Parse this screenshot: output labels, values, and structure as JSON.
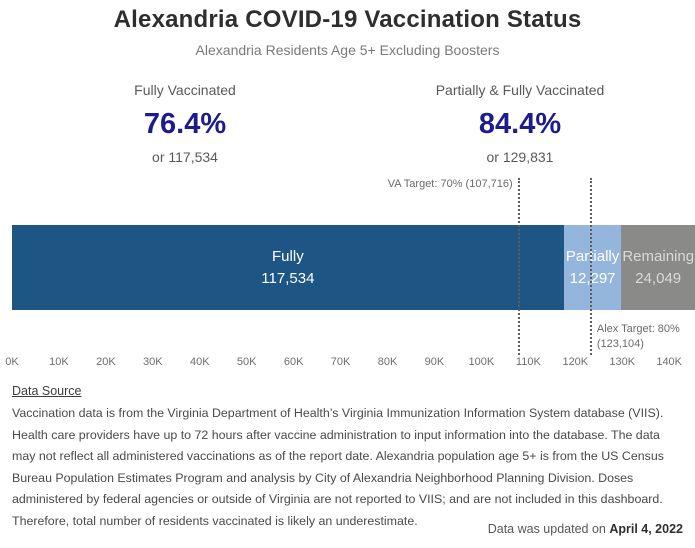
{
  "header": {
    "title": "Alexandria COVID-19 Vaccination Status",
    "subtitle": "Alexandria Residents Age 5+ Excluding Boosters"
  },
  "stats": [
    {
      "label": "Fully Vaccinated",
      "percent": "76.4%",
      "count": "or 117,534"
    },
    {
      "label": "Partially & Fully Vaccinated",
      "percent": "84.4%",
      "count": "or 129,831"
    }
  ],
  "chart_data": {
    "type": "bar",
    "orientation": "horizontal_stacked",
    "segments": [
      {
        "name": "Fully",
        "value": 117534,
        "value_label": "117,534",
        "color": "#1d5584",
        "text_color": "#ffffff"
      },
      {
        "name": "Partially",
        "value": 12297,
        "value_label": "12,297",
        "color": "#94b5dc",
        "text_color": "#ffffff"
      },
      {
        "name": "Remaining",
        "value": 24049,
        "value_label": "24,049",
        "color": "#8a8a89",
        "text_color": "#d9d9d9"
      }
    ],
    "x_ticks": [
      "0K",
      "10K",
      "20K",
      "30K",
      "40K",
      "50K",
      "60K",
      "70K",
      "80K",
      "90K",
      "100K",
      "110K",
      "120K",
      "130K",
      "140K"
    ],
    "x_tick_step": 10000,
    "xlim": [
      0,
      145500
    ],
    "grid": false,
    "annotations": [
      {
        "label": "VA Target: 70% (107,716)",
        "value": 107716,
        "placement": "left-of-line-top"
      },
      {
        "label": "Alex Target: 80%",
        "sublabel": "(123,104)",
        "value": 123104,
        "placement": "right-of-line-bottom"
      }
    ]
  },
  "footer": {
    "heading": "Data Source",
    "body": "Vaccination data is from the Virginia Department of Health’s Virginia Immunization Information System database (VIIS). Health care providers have up to 72 hours after vaccine administration to input information into the database. The data may not reflect all administered vaccinations as of the report date. Alexandria population age 5+ is from the US Census Bureau Population Estimates Program and analysis by City of Alexandria Neighborhood Planning Division. Doses administered by federal agencies or outside of Virginia are not reported to VIIS; and are not included in this dashboard. Therefore, total number of residents vaccinated is likely an underestimate.",
    "updated_prefix": "Data was updated on ",
    "updated_date": "April 4, 2022"
  },
  "colors": {
    "accent_navy": "#1d1c8f",
    "bar_fully": "#1d5584",
    "bar_partially": "#94b5dc",
    "bar_remaining": "#8a8a89",
    "refline_gray": "#5e5e5e"
  }
}
